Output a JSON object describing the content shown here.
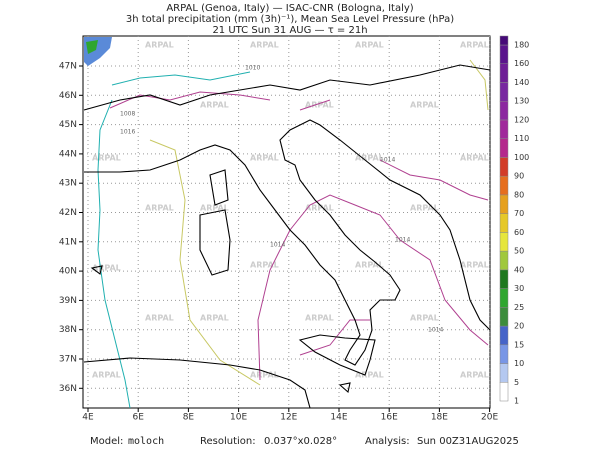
{
  "header": {
    "line1": "ARPAL (Genoa, Italy)  —  ISAC-CNR (Bologna, Italy)",
    "line2": "3h total precipitation (mm (3h)⁻¹), Mean Sea Level Pressure (hPa)",
    "line3": "21 UTC Sun 31 AUG  —  τ = 21h"
  },
  "map": {
    "watermark": "ARPAL",
    "longitude_ticks": [
      {
        "value": 4,
        "label": "4E"
      },
      {
        "value": 6,
        "label": "6E"
      },
      {
        "value": 8,
        "label": "8E"
      },
      {
        "value": 10,
        "label": "10E"
      },
      {
        "value": 12,
        "label": "12E"
      },
      {
        "value": 14,
        "label": "14E"
      },
      {
        "value": 16,
        "label": "16E"
      },
      {
        "value": 18,
        "label": "18E"
      },
      {
        "value": 20,
        "label": "20E"
      }
    ],
    "latitude_ticks": [
      {
        "value": 36,
        "label": "36N"
      },
      {
        "value": 37,
        "label": "37N"
      },
      {
        "value": 38,
        "label": "38N"
      },
      {
        "value": 39,
        "label": "39N"
      },
      {
        "value": 40,
        "label": "40N"
      },
      {
        "value": 41,
        "label": "41N"
      },
      {
        "value": 42,
        "label": "42N"
      },
      {
        "value": 43,
        "label": "43N"
      },
      {
        "value": 44,
        "label": "44N"
      },
      {
        "value": 45,
        "label": "45N"
      },
      {
        "value": 46,
        "label": "46N"
      },
      {
        "value": 47,
        "label": "47N"
      }
    ],
    "isobar_labels": [
      "1010",
      "1008",
      "1016",
      "1014",
      "1014",
      "1014",
      "1014"
    ]
  },
  "colorbar": {
    "levels": [
      1,
      5,
      10,
      15,
      20,
      25,
      30,
      40,
      50,
      60,
      70,
      80,
      90,
      100,
      110,
      120,
      130,
      140,
      160,
      180
    ],
    "colors": [
      "#ffffff",
      "#b4c8f0",
      "#7896e6",
      "#4664c8",
      "#3c8c3c",
      "#2fa62f",
      "#1e781e",
      "#a0c83c",
      "#e6e63c",
      "#e6c828",
      "#e6a01e",
      "#e66e1e",
      "#d23c28",
      "#b4288c",
      "#a0289b",
      "#8c28a0",
      "#7828a0",
      "#6e1e96",
      "#5a148c",
      "#460a78"
    ]
  },
  "footer": {
    "model_label": "Model:",
    "model": "moloch",
    "resolution_label": "Resolution:",
    "resolution": "0.037°x0.028°",
    "analysis_label": "Analysis:",
    "analysis": "Sun 00Z31AUG2025"
  }
}
